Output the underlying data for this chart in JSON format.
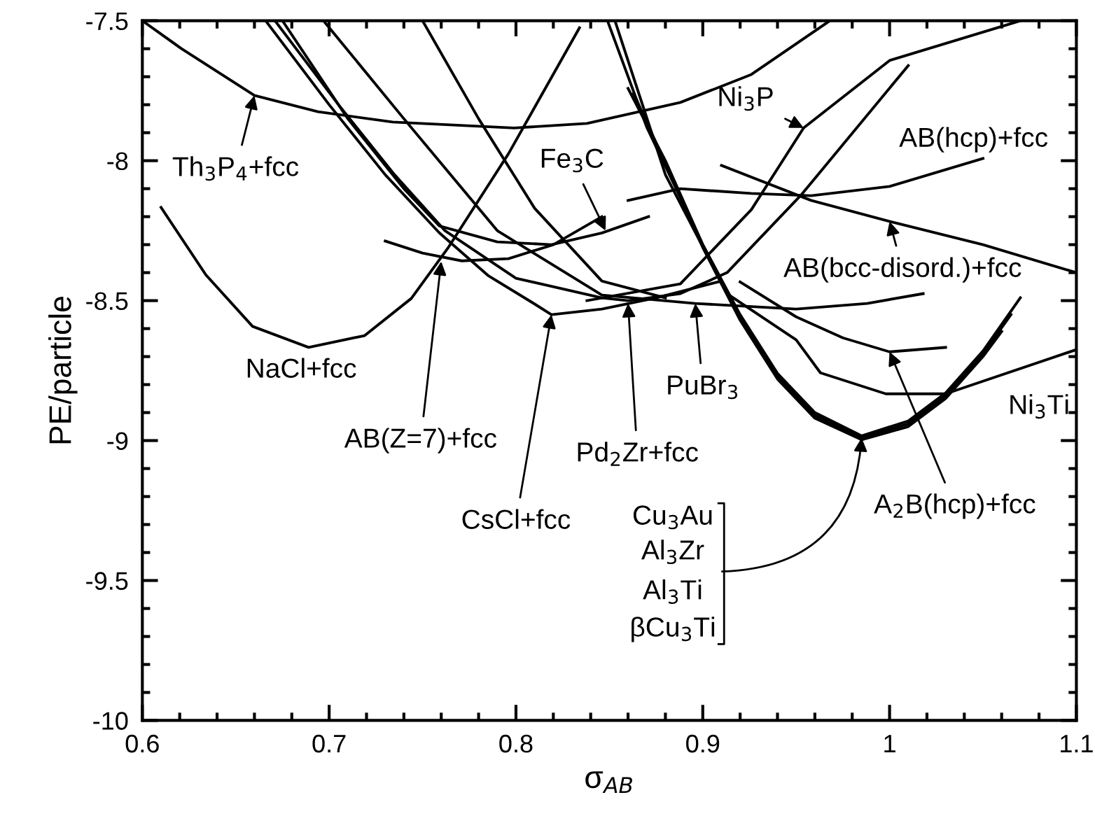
{
  "chart_data": {
    "type": "line",
    "xlabel": "σ$_{AB}$",
    "ylabel": "PE/particle",
    "xlim": [
      0.6,
      1.1
    ],
    "ylim": [
      -10,
      -7.5
    ],
    "xticks": [
      0.6,
      0.7,
      0.8,
      0.9,
      1,
      1.1
    ],
    "yticks": [
      -10,
      -9.5,
      -9,
      -8.5,
      -8,
      -7.5
    ],
    "grid": false,
    "legend": false,
    "marker": "none",
    "line_style": "solid",
    "series": [
      {
        "color": "#000000",
        "x": [
          0.6,
          0.621,
          0.66,
          0.694,
          0.734,
          0.799,
          0.838,
          0.888,
          0.926,
          0.968
        ],
        "values": [
          -7.5,
          -7.6,
          -7.767,
          -7.825,
          -7.862,
          -7.883,
          -7.867,
          -7.792,
          -7.692,
          -7.5
        ]
      },
      {
        "color": "#000000",
        "x": [
          0.61,
          0.634,
          0.659,
          0.689,
          0.719,
          0.744,
          0.764,
          0.796,
          0.834
        ],
        "values": [
          -8.167,
          -8.408,
          -8.592,
          -8.667,
          -8.625,
          -8.492,
          -8.308,
          -7.975,
          -7.525
        ]
      },
      {
        "color": "#000000",
        "x": [
          0.73,
          0.75,
          0.771,
          0.796,
          0.82,
          0.846
        ],
        "values": [
          -8.287,
          -8.33,
          -8.358,
          -8.35,
          -8.3,
          -8.2
        ]
      },
      {
        "color": "#000000",
        "x": [
          0.666,
          0.7,
          0.73,
          0.759,
          0.785,
          0.809,
          0.819,
          0.846,
          0.875,
          0.91
        ],
        "values": [
          -7.5,
          -7.8,
          -8.05,
          -8.258,
          -8.41,
          -8.508,
          -8.55,
          -8.53,
          -8.49,
          -8.43
        ]
      },
      {
        "color": "#000000",
        "x": [
          0.671,
          0.705,
          0.735,
          0.762,
          0.8,
          0.846,
          0.86,
          0.888,
          0.913,
          0.953,
          1.01
        ],
        "values": [
          -7.5,
          -7.8,
          -8.05,
          -8.25,
          -8.42,
          -8.49,
          -8.5,
          -8.475,
          -8.4,
          -8.12,
          -7.66
        ]
      },
      {
        "color": "#000000",
        "x": [
          0.838,
          0.888,
          0.926,
          0.954,
          1.0,
          1.07
        ],
        "values": [
          -8.5,
          -8.44,
          -8.175,
          -7.883,
          -7.642,
          -7.5
        ]
      },
      {
        "color": "#000000",
        "x": [
          0.697,
          0.74,
          0.79,
          0.846,
          0.896,
          0.95,
          0.988,
          1.018
        ],
        "values": [
          -7.5,
          -7.85,
          -8.25,
          -8.48,
          -8.51,
          -8.53,
          -8.51,
          -8.475
        ]
      },
      {
        "color": "#000000",
        "x": [
          0.675,
          0.71,
          0.74,
          0.759,
          0.79,
          0.819,
          0.846,
          0.871
        ],
        "values": [
          -7.5,
          -7.85,
          -8.1,
          -8.233,
          -8.29,
          -8.3,
          -8.258,
          -8.2
        ]
      },
      {
        "color": "#000000",
        "x": [
          0.75,
          0.78,
          0.81,
          0.846,
          0.88
        ],
        "values": [
          -7.5,
          -7.85,
          -8.17,
          -8.43,
          -8.49
        ]
      },
      {
        "color": "#000000",
        "x": [
          0.92,
          0.95,
          0.975,
          1.0,
          1.03
        ],
        "values": [
          -8.433,
          -8.558,
          -8.633,
          -8.683,
          -8.667
        ]
      },
      {
        "color": "#000000",
        "x": [
          0.853,
          0.88,
          0.913,
          0.95,
          0.963,
          0.998,
          1.03,
          1.1
        ],
        "values": [
          -7.5,
          -8.05,
          -8.475,
          -8.64,
          -8.758,
          -8.833,
          -8.833,
          -8.675
        ]
      },
      {
        "color": "#000000",
        "x": [
          0.849,
          0.87,
          0.9,
          0.92,
          0.94,
          0.96,
          0.985,
          1.01,
          1.03,
          1.05,
          1.07
        ],
        "values": [
          -7.5,
          -7.88,
          -8.3,
          -8.55,
          -8.76,
          -8.9,
          -8.983,
          -8.93,
          -8.83,
          -8.68,
          -8.49
        ]
      },
      {
        "color": "#000000",
        "x": [
          0.86,
          0.88,
          0.9,
          0.92,
          0.94,
          0.96,
          0.985,
          1.01,
          1.03,
          1.05,
          1.065
        ],
        "values": [
          -7.742,
          -8.0,
          -8.3,
          -8.56,
          -8.77,
          -8.91,
          -8.99,
          -8.94,
          -8.84,
          -8.69,
          -8.55
        ]
      },
      {
        "color": "#000000",
        "x": [
          0.863,
          0.88,
          0.9,
          0.92,
          0.94,
          0.96,
          0.985,
          1.01,
          1.03,
          1.05,
          1.06
        ],
        "values": [
          -7.76,
          -8.01,
          -8.31,
          -8.57,
          -8.78,
          -8.92,
          -8.997,
          -8.95,
          -8.85,
          -8.7,
          -8.61
        ]
      },
      {
        "color": "#000000",
        "x": [
          0.91,
          0.958,
          1.0,
          1.05,
          1.1
        ],
        "values": [
          -8.017,
          -8.142,
          -8.217,
          -8.3,
          -8.4
        ]
      },
      {
        "color": "#000000",
        "x": [
          0.86,
          0.888,
          0.926,
          0.958,
          1.0,
          1.05
        ],
        "values": [
          -8.142,
          -8.1,
          -8.117,
          -8.125,
          -8.092,
          -7.992
        ]
      }
    ],
    "annotations": [
      {
        "text": "Th$_{3}$P$_{4}$+fcc",
        "x": 0.66,
        "y": -7.767
      },
      {
        "text": "Fe$_{3}$C",
        "x": 0.848,
        "y": -8.25
      },
      {
        "text": "Ni$_{3}$P",
        "x": 0.954,
        "y": -7.883
      },
      "AB(hcp)+fcc",
      {
        "text": "AB(bcc-disord.)+fcc",
        "x": 1.0,
        "y": -8.217
      },
      "NaCl+fcc",
      {
        "text": "AB(Z=7)+fcc",
        "x": 0.76,
        "y": -8.36
      },
      {
        "text": "CsCl+fcc",
        "x": 0.819,
        "y": -8.55
      },
      {
        "text": "Pd$_{2}$Zr+fcc",
        "x": 0.86,
        "y": -8.51
      },
      {
        "text": "PuBr$_{3}$",
        "x": 0.896,
        "y": -8.51
      },
      "Ni$_{3}$Ti",
      {
        "text": "A$_{2}$B(hcp)+fcc",
        "x": 1.0,
        "y": -8.683
      },
      "Cu$_{3}$Au",
      {
        "text": "Al$_{3}$Zr",
        "x": 0.985,
        "y": -8.99
      },
      "Al$_{3}$Ti",
      "βCu$_{3}$Ti"
    ]
  }
}
